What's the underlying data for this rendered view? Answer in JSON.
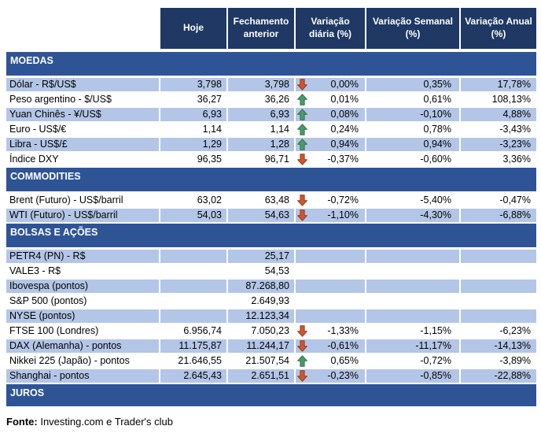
{
  "chart_data": {
    "type": "table",
    "columns": [
      "Hoje",
      "Fechamento anterior",
      "Variação diária (%)",
      "Variação Semanal (%)",
      "Variação Anual (%)"
    ],
    "sections": [
      {
        "title": "MOEDAS",
        "stripe_start": "alt",
        "rows": [
          {
            "label": "Dólar - R$/US$",
            "hoje": "3,798",
            "fechamento": "3,798",
            "arrow": "down",
            "diaria": "0,00%",
            "semanal": "0,35%",
            "anual": "17,78%"
          },
          {
            "label": "Peso argentino - $/US$",
            "hoje": "36,27",
            "fechamento": "36,26",
            "arrow": "up",
            "diaria": "0,01%",
            "semanal": "0,61%",
            "anual": "108,13%"
          },
          {
            "label": "Yuan Chinês - ¥/US$",
            "hoje": "6,93",
            "fechamento": "6,93",
            "arrow": "up",
            "diaria": "0,08%",
            "semanal": "-0,10%",
            "anual": "4,88%"
          },
          {
            "label": "Euro - US$/€",
            "hoje": "1,14",
            "fechamento": "1,14",
            "arrow": "up",
            "diaria": "0,24%",
            "semanal": "0,78%",
            "anual": "-3,43%"
          },
          {
            "label": "Libra - US$/£",
            "hoje": "1,29",
            "fechamento": "1,28",
            "arrow": "up",
            "diaria": "0,94%",
            "semanal": "0,94%",
            "anual": "-3,23%"
          },
          {
            "label": "Índice DXY",
            "hoje": "96,35",
            "fechamento": "96,71",
            "arrow": "down",
            "diaria": "-0,37%",
            "semanal": "-0,60%",
            "anual": "3,36%"
          }
        ]
      },
      {
        "title": "COMMODITIES",
        "stripe_start": "plain",
        "rows": [
          {
            "label": "Brent (Futuro) - US$/barril",
            "hoje": "63,02",
            "fechamento": "63,48",
            "arrow": "down",
            "diaria": "-0,72%",
            "semanal": "-5,40%",
            "anual": "-0,47%"
          },
          {
            "label": "WTI (Futuro) - US$/barril",
            "hoje": "54,03",
            "fechamento": "54,63",
            "arrow": "down",
            "diaria": "-1,10%",
            "semanal": "-4,30%",
            "anual": "-6,88%"
          }
        ]
      },
      {
        "title": "BOLSAS E AÇÕES",
        "stripe_start": "alt",
        "rows": [
          {
            "label": "PETR4 (PN) - R$",
            "hoje": "",
            "fechamento": "25,17",
            "arrow": "",
            "diaria": "",
            "semanal": "",
            "anual": ""
          },
          {
            "label": "VALE3 - R$",
            "hoje": "",
            "fechamento": "54,53",
            "arrow": "",
            "diaria": "",
            "semanal": "",
            "anual": ""
          },
          {
            "label": "Ibovespa (pontos)",
            "hoje": "",
            "fechamento": "87.268,80",
            "arrow": "",
            "diaria": "",
            "semanal": "",
            "anual": ""
          },
          {
            "label": "S&P 500 (pontos)",
            "hoje": "",
            "fechamento": "2.649,93",
            "arrow": "",
            "diaria": "",
            "semanal": "",
            "anual": ""
          },
          {
            "label": "NYSE (pontos)",
            "hoje": "",
            "fechamento": "12.123,34",
            "arrow": "",
            "diaria": "",
            "semanal": "",
            "anual": ""
          },
          {
            "label": "FTSE 100 (Londres)",
            "hoje": "6.956,74",
            "fechamento": "7.050,23",
            "arrow": "down",
            "diaria": "-1,33%",
            "semanal": "-1,15%",
            "anual": "-6,23%"
          },
          {
            "label": "DAX (Alemanha) - pontos",
            "hoje": "11.175,87",
            "fechamento": "11.244,17",
            "arrow": "down",
            "diaria": "-0,61%",
            "semanal": "-11,17%",
            "anual": "-14,13%"
          },
          {
            "label": "Nikkei 225 (Japão) - pontos",
            "hoje": "21.646,55",
            "fechamento": "21.507,54",
            "arrow": "up",
            "diaria": "0,65%",
            "semanal": "-0,72%",
            "anual": "-3,89%"
          },
          {
            "label": "Shanghai - pontos",
            "hoje": "2.645,43",
            "fechamento": "2.651,51",
            "arrow": "down",
            "diaria": "-0,23%",
            "semanal": "-0,85%",
            "anual": "-22,88%"
          }
        ]
      },
      {
        "title": "JUROS",
        "stripe_start": "alt",
        "rows": []
      }
    ]
  },
  "footer": {
    "label": "Fonte:",
    "text": " Investing.com e Trader's club"
  },
  "colors": {
    "header_bg": "#1F3864",
    "section_band_bg": "#2F5496",
    "row_alt_bg": "#B4C6E7",
    "row_plain_bg": "#FFFFFF",
    "arrow_up_fill": "#4A9B68",
    "arrow_up_border": "#2E714B",
    "arrow_down_fill": "#D4552C",
    "arrow_down_border": "#8F3A20",
    "text": "#000000",
    "header_text": "#FFFFFF"
  }
}
